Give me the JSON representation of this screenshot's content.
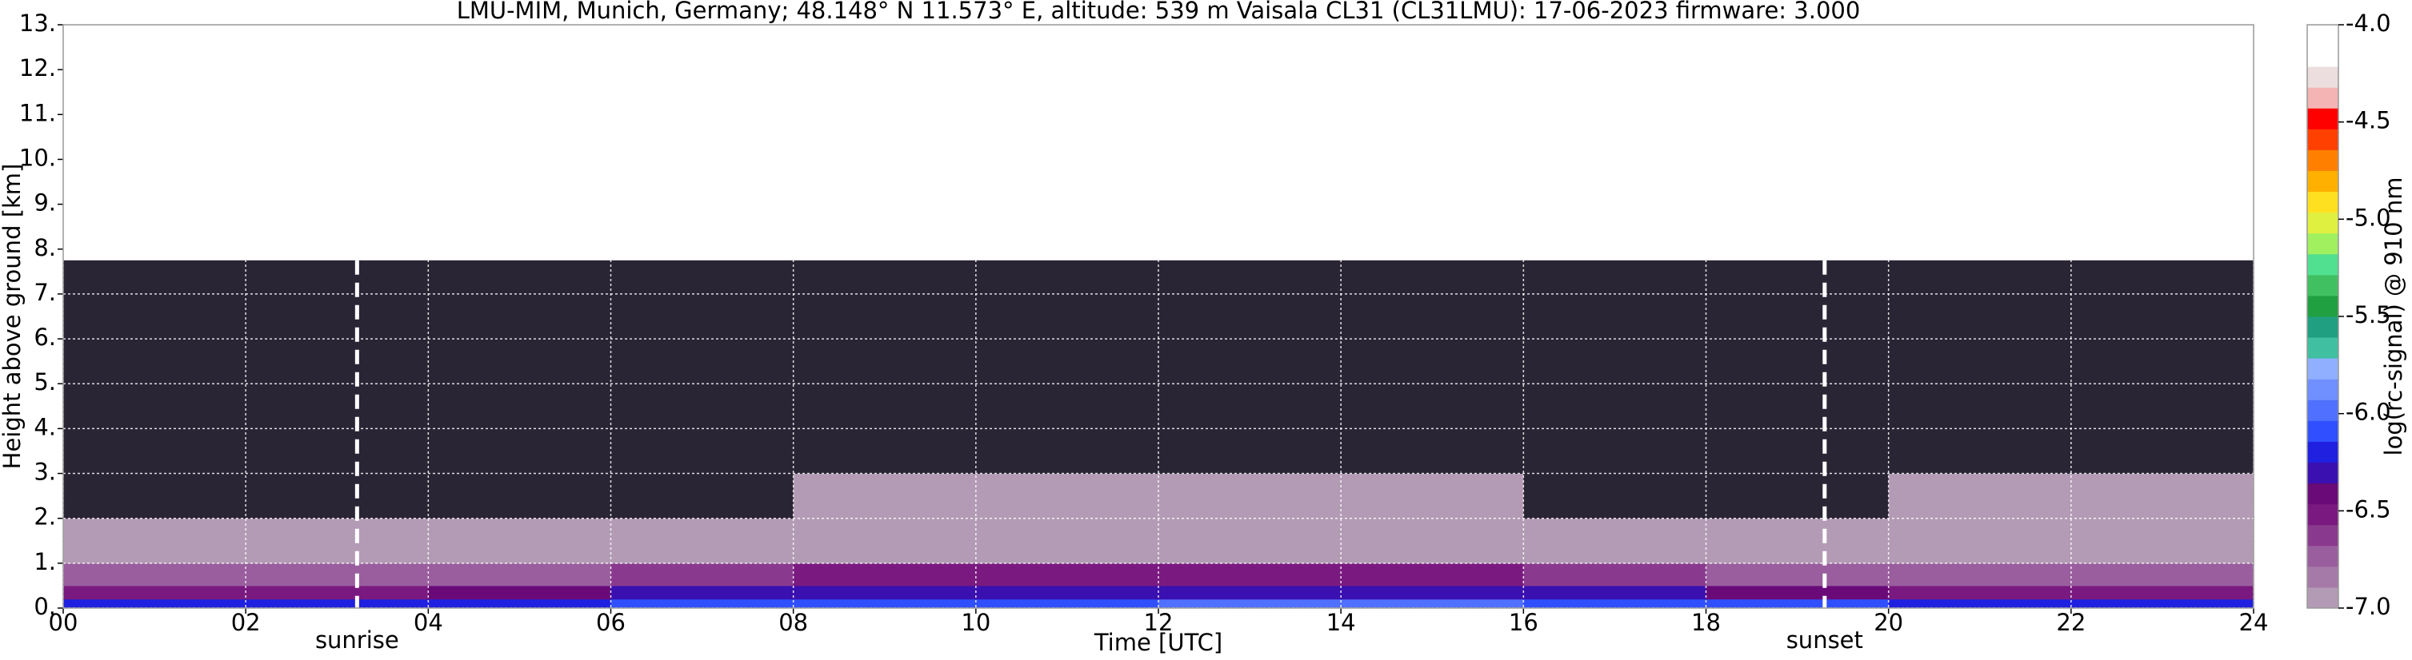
{
  "chart_data": {
    "type": "heatmap",
    "title": "LMU-MIM, Munich, Germany; 48.148° N 11.573° E, altitude: 539 m    Vaisala CL31 (CL31LMU): 17-06-2023    firmware: 3.000",
    "x_label": "Time [UTC]",
    "y_label": "Height above ground [km]",
    "colorbar_label": "log(rc-signal) @ 910 nm",
    "xlim": [
      0,
      24
    ],
    "ylim": [
      0,
      13
    ],
    "xticks": [
      {
        "value": 0,
        "label": "00"
      },
      {
        "value": 2,
        "label": "02"
      },
      {
        "value": 4,
        "label": "04"
      },
      {
        "value": 6,
        "label": "06"
      },
      {
        "value": 8,
        "label": "08"
      },
      {
        "value": 10,
        "label": "10"
      },
      {
        "value": 12,
        "label": "12"
      },
      {
        "value": 14,
        "label": "14"
      },
      {
        "value": 16,
        "label": "16"
      },
      {
        "value": 18,
        "label": "18"
      },
      {
        "value": 20,
        "label": "20"
      },
      {
        "value": 22,
        "label": "22"
      },
      {
        "value": 24,
        "label": "24"
      }
    ],
    "yticks": [
      {
        "value": 0,
        "label": "0."
      },
      {
        "value": 1,
        "label": "1."
      },
      {
        "value": 2,
        "label": "2."
      },
      {
        "value": 3,
        "label": "3."
      },
      {
        "value": 4,
        "label": "4."
      },
      {
        "value": 5,
        "label": "5."
      },
      {
        "value": 6,
        "label": "6."
      },
      {
        "value": 7,
        "label": "7."
      },
      {
        "value": 8,
        "label": "8."
      },
      {
        "value": 9,
        "label": "9."
      },
      {
        "value": 10,
        "label": "10."
      },
      {
        "value": 11,
        "label": "11."
      },
      {
        "value": 12,
        "label": "12."
      },
      {
        "value": 13,
        "label": "13."
      }
    ],
    "grid": true,
    "x_bins": [
      0,
      2,
      4,
      6,
      8,
      10,
      12,
      14,
      16,
      18,
      20,
      22,
      24
    ],
    "y_bins": [
      0,
      0.2,
      0.5,
      1,
      2,
      3,
      4,
      5,
      6,
      7.75
    ],
    "values": [
      [
        -6.2,
        -6.2,
        -6.15,
        -6.1,
        -6.05,
        -6.05,
        -6.0,
        -6.0,
        -6.05,
        -6.1,
        -6.15,
        -6.2
      ],
      [
        -6.5,
        -6.5,
        -6.45,
        -6.35,
        -6.3,
        -6.3,
        -6.3,
        -6.3,
        -6.35,
        -6.4,
        -6.5,
        -6.5
      ],
      [
        -6.75,
        -6.75,
        -6.7,
        -6.6,
        -6.55,
        -6.55,
        -6.55,
        -6.55,
        -6.6,
        -6.7,
        -6.75,
        -6.75
      ],
      [
        -6.95,
        -6.95,
        -6.95,
        -6.9,
        -6.9,
        -6.9,
        -6.9,
        -6.9,
        -6.9,
        -6.95,
        -6.95,
        -6.95
      ],
      [
        -7.1,
        -7.1,
        -7.1,
        -7.05,
        -6.9,
        -6.9,
        -6.95,
        -7.0,
        -7.05,
        -7.1,
        -6.95,
        -6.95
      ],
      [
        -7.1,
        -7.1,
        -7.1,
        -7.1,
        -7.05,
        -7.05,
        -7.05,
        -7.05,
        -7.1,
        -7.1,
        -7.1,
        -7.1
      ],
      [
        -7.1,
        -7.1,
        -7.1,
        -7.1,
        -7.1,
        -7.1,
        -7.1,
        -7.1,
        -7.1,
        -7.1,
        -7.1,
        -7.1
      ],
      [
        -7.1,
        -7.1,
        -7.1,
        -7.1,
        -7.1,
        -7.1,
        -7.1,
        -7.1,
        -7.1,
        -7.1,
        -7.1,
        -7.1
      ],
      [
        -7.1,
        -7.1,
        -7.1,
        -7.1,
        -7.1,
        -7.1,
        -7.1,
        -7.1,
        -7.1,
        -7.1,
        -7.1,
        -7.1
      ]
    ],
    "clim": [
      -7,
      -4
    ],
    "colorbar_ticks": [
      {
        "value": -7,
        "label": "-7.0"
      },
      {
        "value": -6.5,
        "label": "-6.5"
      },
      {
        "value": -6,
        "label": "-6.0"
      },
      {
        "value": -5.5,
        "label": "-5.5"
      },
      {
        "value": -5,
        "label": "-5.0"
      },
      {
        "value": -4.5,
        "label": "-4.5"
      },
      {
        "value": -4,
        "label": "-4.0"
      }
    ],
    "colors": [
      "#b39bb5",
      "#a67aa8",
      "#9a5e9e",
      "#8a3a8e",
      "#7a1a80",
      "#6a0a78",
      "#3a10b0",
      "#2020e0",
      "#3050ff",
      "#5070ff",
      "#7090ff",
      "#90b0ff",
      "#40c0a0",
      "#20a080",
      "#20a040",
      "#40c060",
      "#50e090",
      "#a0f060",
      "#e0f040",
      "#ffe020",
      "#ffb000",
      "#ff8000",
      "#ff4000",
      "#ff0000",
      "#f4b4b4",
      "#ecdede",
      "#ffffff",
      "#ffffff"
    ],
    "under_color": "#2a2535",
    "annotations": [
      {
        "text": "sunrise",
        "x": 3.22
      },
      {
        "text": "sunset",
        "x": 19.3
      }
    ]
  }
}
